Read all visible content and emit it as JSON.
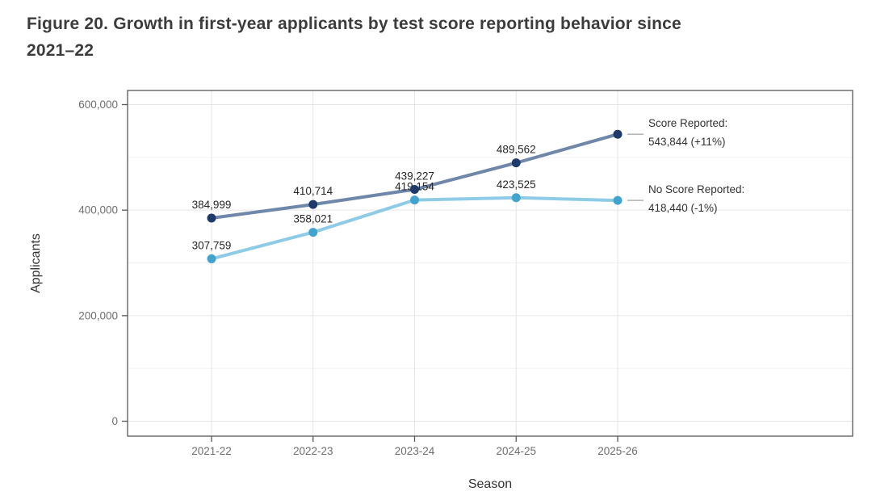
{
  "header": {
    "title_line1": "Figure 20. Growth in first-year applicants by test score reporting behavior since",
    "title_line2": "2021–22"
  },
  "chart_data": {
    "type": "line",
    "title": "Figure 20. Growth in first-year applicants by test score reporting behavior since 2021–22",
    "xlabel": "Season",
    "ylabel": "Applicants",
    "categories": [
      "2021-22",
      "2022-23",
      "2023-24",
      "2024-25",
      "2025-26"
    ],
    "ylim": [
      0,
      600000
    ],
    "ytick_values": [
      0,
      200000,
      400000,
      600000
    ],
    "ytick_labels": [
      "0",
      "200,000",
      "400,000",
      "600,000"
    ],
    "minor_gridline_step": 100000,
    "grid": true,
    "legend_position": "direct-labels-right-of-last-point",
    "series": [
      {
        "name": "Score Reported",
        "values": [
          384999,
          410714,
          439227,
          489562,
          543844
        ],
        "data_labels": [
          "384,999",
          "410,714",
          "439,227",
          "489,562"
        ],
        "final_value": 543844,
        "change_pct": "+11%",
        "annotation_line1": "Score Reported:",
        "annotation_line2": "543,844 (+11%)",
        "line_color": "#6f88aa",
        "point_color": "#1d3a6b"
      },
      {
        "name": "No Score Reported",
        "values": [
          307759,
          358021,
          419154,
          423525,
          418440
        ],
        "data_labels": [
          "307,759",
          "358,021",
          "419,154",
          "423,525"
        ],
        "final_value": 418440,
        "change_pct": "-1%",
        "annotation_line1": "No Score Reported:",
        "annotation_line2": "418,440 (-1%)",
        "line_color": "#8ecbe6",
        "point_color": "#42a3ce"
      }
    ],
    "colors": {
      "background": "#ffffff",
      "grid_major": "#e6e6e6",
      "grid_minor": "#f0f0f0",
      "panel_border": "#595959",
      "tick_label": "#6e6e6e",
      "axis_title": "#333333",
      "data_label": "#262626",
      "annotation_text": "#333333",
      "connector": "#b3b3b3",
      "title": "#3c3c3c"
    }
  }
}
